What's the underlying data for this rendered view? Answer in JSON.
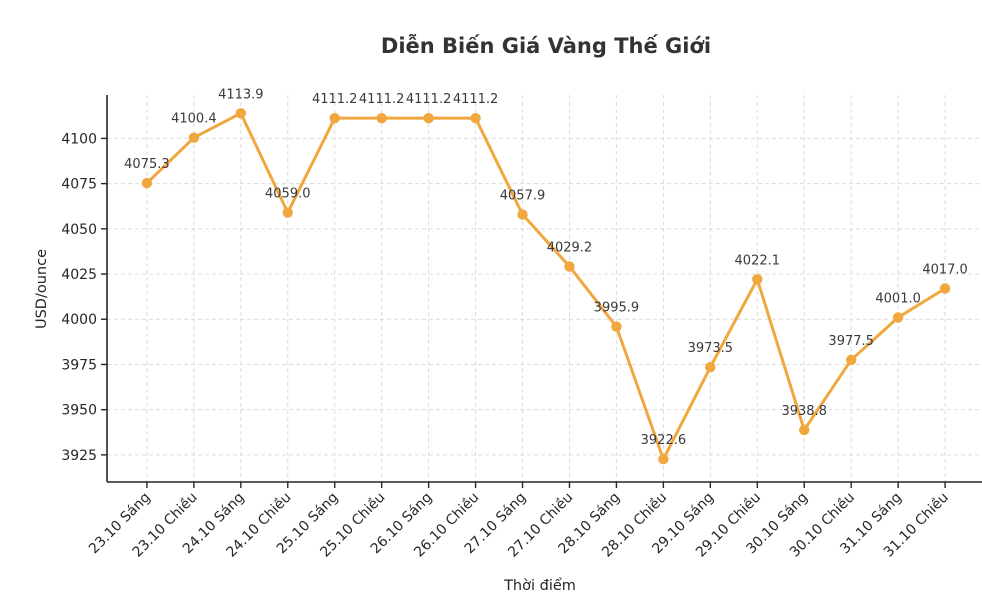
{
  "chart_data": {
    "type": "line",
    "title": "Diễn Biến Giá Vàng Thế Giới",
    "xlabel": "Thời điểm",
    "ylabel": "USD/ounce",
    "categories": [
      "23.10 Sáng",
      "23.10 Chiều",
      "24.10 Sáng",
      "24.10 Chiều",
      "25.10 Sáng",
      "25.10 Chiều",
      "26.10 Sáng",
      "26.10 Chiều",
      "27.10 Sáng",
      "27.10 Chiều",
      "28.10 Sáng",
      "28.10 Chiều",
      "29.10 Sáng",
      "29.10 Chiều",
      "30.10 Sáng",
      "30.10 Chiều",
      "31.10 Sáng",
      "31.10 Chiều"
    ],
    "values": [
      4075.3,
      4100.4,
      4113.9,
      4059.0,
      4111.2,
      4111.2,
      4111.2,
      4111.2,
      4057.9,
      4029.2,
      3995.9,
      3922.6,
      3973.5,
      4022.1,
      3938.8,
      3977.5,
      4001.0,
      4017.0
    ],
    "data_label_format_decimals": 1,
    "yticks": [
      3925,
      3950,
      3975,
      4000,
      4025,
      4050,
      4075,
      4100
    ],
    "ylim": [
      3910,
      4124
    ],
    "grid": true,
    "grid_style": "dashed",
    "legend": "none",
    "data_labels": true,
    "x_tick_rotation_deg": 45,
    "colors": {
      "line": "#F0A73E",
      "marker": "#F0A73E",
      "grid": "#DCDCDC",
      "axis": "#262626",
      "tick_text": "#262626",
      "data_label_text": "#3A3A3A",
      "title_text": "#333333",
      "background": "#FFFFFF"
    }
  }
}
